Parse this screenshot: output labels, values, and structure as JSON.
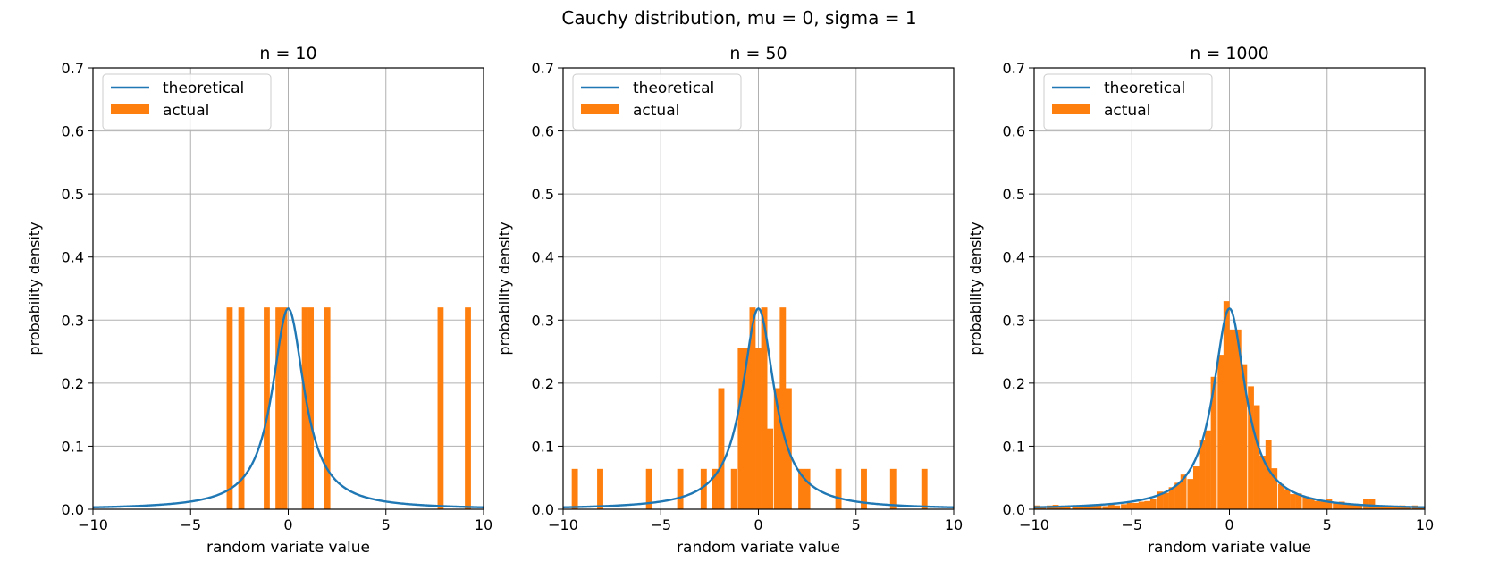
{
  "title": "Cauchy distribution, mu = 0, sigma = 1",
  "colors": {
    "theoretical": "#1f77b4",
    "actual": "#ff7f0e",
    "grid": "#b0b0b0"
  },
  "chart_data": [
    {
      "type": "bar",
      "title": "n = 10",
      "xlabel": "random variate value",
      "ylabel": "probability density",
      "xlim": [
        -10,
        10
      ],
      "ylim": [
        0,
        0.7
      ],
      "xticks": [
        -10,
        -5,
        0,
        5,
        10
      ],
      "xtick_labels": [
        "−10",
        "−5",
        "0",
        "5",
        "10"
      ],
      "yticks": [
        0.0,
        0.1,
        0.2,
        0.3,
        0.4,
        0.5,
        0.6,
        0.7
      ],
      "ytick_labels": [
        "0.0",
        "0.1",
        "0.2",
        "0.3",
        "0.4",
        "0.5",
        "0.6",
        "0.7"
      ],
      "grid": true,
      "legend_position": "top-left",
      "legend": [
        "theoretical",
        "actual"
      ],
      "series": [
        {
          "name": "theoretical",
          "kind": "line",
          "function": "cauchy_pdf",
          "mu": 0,
          "sigma": 1
        },
        {
          "name": "actual",
          "kind": "histogram",
          "bin_width": 0.31,
          "bins": [
            {
              "x": -3.0,
              "y": 0.32
            },
            {
              "x": -2.4,
              "y": 0.32
            },
            {
              "x": -1.1,
              "y": 0.32
            },
            {
              "x": -0.5,
              "y": 0.32
            },
            {
              "x": -0.2,
              "y": 0.32
            },
            {
              "x": 0.85,
              "y": 0.32
            },
            {
              "x": 1.15,
              "y": 0.32
            },
            {
              "x": 2.0,
              "y": 0.32
            },
            {
              "x": 7.8,
              "y": 0.32
            },
            {
              "x": 9.2,
              "y": 0.32
            }
          ]
        }
      ]
    },
    {
      "type": "bar",
      "title": "n = 50",
      "xlabel": "random variate value",
      "ylabel": "probability density",
      "xlim": [
        -10,
        10
      ],
      "ylim": [
        0,
        0.7
      ],
      "xticks": [
        -10,
        -5,
        0,
        5,
        10
      ],
      "xtick_labels": [
        "−10",
        "−5",
        "0",
        "5",
        "10"
      ],
      "yticks": [
        0.0,
        0.1,
        0.2,
        0.3,
        0.4,
        0.5,
        0.6,
        0.7
      ],
      "ytick_labels": [
        "0.0",
        "0.1",
        "0.2",
        "0.3",
        "0.4",
        "0.5",
        "0.6",
        "0.7"
      ],
      "grid": true,
      "legend_position": "top-left",
      "legend": [
        "theoretical",
        "actual"
      ],
      "series": [
        {
          "name": "theoretical",
          "kind": "line",
          "function": "cauchy_pdf",
          "mu": 0,
          "sigma": 1
        },
        {
          "name": "actual",
          "kind": "histogram",
          "bin_width": 0.315,
          "bins": [
            {
              "x": -9.4,
              "y": 0.064
            },
            {
              "x": -8.1,
              "y": 0.064
            },
            {
              "x": -5.6,
              "y": 0.064
            },
            {
              "x": -4.0,
              "y": 0.064
            },
            {
              "x": -2.8,
              "y": 0.064
            },
            {
              "x": -2.2,
              "y": 0.064
            },
            {
              "x": -1.9,
              "y": 0.192
            },
            {
              "x": -1.25,
              "y": 0.064
            },
            {
              "x": -0.9,
              "y": 0.256
            },
            {
              "x": -0.6,
              "y": 0.256
            },
            {
              "x": -0.3,
              "y": 0.32
            },
            {
              "x": 0.0,
              "y": 0.256
            },
            {
              "x": 0.3,
              "y": 0.32
            },
            {
              "x": 0.6,
              "y": 0.128
            },
            {
              "x": 0.95,
              "y": 0.192
            },
            {
              "x": 1.25,
              "y": 0.32
            },
            {
              "x": 1.55,
              "y": 0.192
            },
            {
              "x": 2.2,
              "y": 0.064
            },
            {
              "x": 2.5,
              "y": 0.064
            },
            {
              "x": 4.1,
              "y": 0.064
            },
            {
              "x": 5.4,
              "y": 0.064
            },
            {
              "x": 6.9,
              "y": 0.064
            },
            {
              "x": 8.5,
              "y": 0.064
            }
          ]
        }
      ]
    },
    {
      "type": "bar",
      "title": "n = 1000",
      "xlabel": "random variate value",
      "ylabel": "probability density",
      "xlim": [
        -10,
        10
      ],
      "ylim": [
        0,
        0.7
      ],
      "xticks": [
        -10,
        -5,
        0,
        5,
        10
      ],
      "xtick_labels": [
        "−10",
        "−5",
        "0",
        "5",
        "10"
      ],
      "yticks": [
        0.0,
        0.1,
        0.2,
        0.3,
        0.4,
        0.5,
        0.6,
        0.7
      ],
      "ytick_labels": [
        "0.0",
        "0.1",
        "0.2",
        "0.3",
        "0.4",
        "0.5",
        "0.6",
        "0.7"
      ],
      "grid": true,
      "legend_position": "top-left",
      "legend": [
        "theoretical",
        "actual"
      ],
      "series": [
        {
          "name": "theoretical",
          "kind": "line",
          "function": "cauchy_pdf",
          "mu": 0,
          "sigma": 1
        },
        {
          "name": "actual",
          "kind": "histogram",
          "bin_width": 0.31,
          "bins": [
            {
              "x": -9.85,
              "y": 0.006
            },
            {
              "x": -9.55,
              "y": 0.005
            },
            {
              "x": -9.2,
              "y": 0.006
            },
            {
              "x": -8.9,
              "y": 0.007
            },
            {
              "x": -8.6,
              "y": 0.004
            },
            {
              "x": -8.3,
              "y": 0.005
            },
            {
              "x": -7.9,
              "y": 0.004
            },
            {
              "x": -7.6,
              "y": 0.006
            },
            {
              "x": -7.3,
              "y": 0.005
            },
            {
              "x": -7.0,
              "y": 0.006
            },
            {
              "x": -6.7,
              "y": 0.006
            },
            {
              "x": -6.35,
              "y": 0.005
            },
            {
              "x": -6.05,
              "y": 0.008
            },
            {
              "x": -5.75,
              "y": 0.006
            },
            {
              "x": -5.4,
              "y": 0.008
            },
            {
              "x": -5.1,
              "y": 0.01
            },
            {
              "x": -4.8,
              "y": 0.01
            },
            {
              "x": -4.5,
              "y": 0.012
            },
            {
              "x": -4.2,
              "y": 0.013
            },
            {
              "x": -3.9,
              "y": 0.016
            },
            {
              "x": -3.55,
              "y": 0.028
            },
            {
              "x": -3.25,
              "y": 0.026
            },
            {
              "x": -2.95,
              "y": 0.035
            },
            {
              "x": -2.65,
              "y": 0.042
            },
            {
              "x": -2.35,
              "y": 0.055
            },
            {
              "x": -2.0,
              "y": 0.048
            },
            {
              "x": -1.7,
              "y": 0.068
            },
            {
              "x": -1.4,
              "y": 0.11
            },
            {
              "x": -1.1,
              "y": 0.125
            },
            {
              "x": -0.8,
              "y": 0.21
            },
            {
              "x": -0.45,
              "y": 0.245
            },
            {
              "x": -0.15,
              "y": 0.33
            },
            {
              "x": 0.15,
              "y": 0.285
            },
            {
              "x": 0.45,
              "y": 0.285
            },
            {
              "x": 0.75,
              "y": 0.23
            },
            {
              "x": 1.1,
              "y": 0.195
            },
            {
              "x": 1.4,
              "y": 0.165
            },
            {
              "x": 1.7,
              "y": 0.085
            },
            {
              "x": 2.0,
              "y": 0.11
            },
            {
              "x": 2.3,
              "y": 0.065
            },
            {
              "x": 2.65,
              "y": 0.04
            },
            {
              "x": 2.95,
              "y": 0.032
            },
            {
              "x": 3.25,
              "y": 0.024
            },
            {
              "x": 3.55,
              "y": 0.025
            },
            {
              "x": 3.9,
              "y": 0.02
            },
            {
              "x": 4.2,
              "y": 0.016
            },
            {
              "x": 4.5,
              "y": 0.013
            },
            {
              "x": 4.8,
              "y": 0.012
            },
            {
              "x": 5.1,
              "y": 0.016
            },
            {
              "x": 5.45,
              "y": 0.01
            },
            {
              "x": 5.75,
              "y": 0.012
            },
            {
              "x": 6.05,
              "y": 0.008
            },
            {
              "x": 6.35,
              "y": 0.007
            },
            {
              "x": 6.65,
              "y": 0.006
            },
            {
              "x": 7.0,
              "y": 0.016
            },
            {
              "x": 7.3,
              "y": 0.016
            },
            {
              "x": 7.6,
              "y": 0.005
            },
            {
              "x": 7.9,
              "y": 0.006
            },
            {
              "x": 8.2,
              "y": 0.004
            },
            {
              "x": 8.55,
              "y": 0.005
            },
            {
              "x": 8.85,
              "y": 0.006
            },
            {
              "x": 9.15,
              "y": 0.004
            },
            {
              "x": 9.5,
              "y": 0.006
            },
            {
              "x": 9.8,
              "y": 0.005
            }
          ]
        }
      ]
    }
  ]
}
